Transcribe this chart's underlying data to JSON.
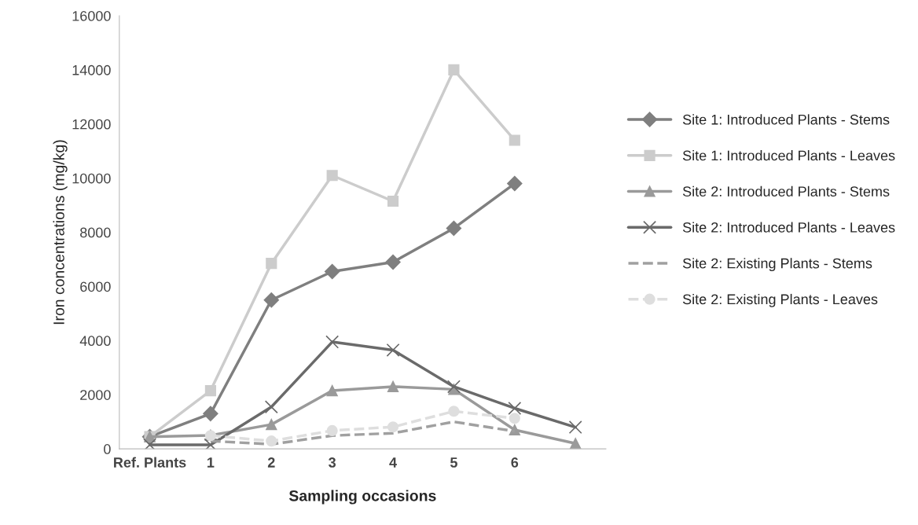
{
  "chart_data": {
    "type": "line",
    "xlabel": "Sampling occasions",
    "ylabel": "Iron concentrations (mg/kg)",
    "categories": [
      "Ref. Plants",
      "1",
      "2",
      "3",
      "4",
      "5",
      "6",
      null
    ],
    "ylim": [
      0,
      16000
    ],
    "yticks": [
      0,
      2000,
      4000,
      6000,
      8000,
      10000,
      12000,
      14000,
      16000
    ],
    "grid": false,
    "legend": "right",
    "series": [
      {
        "name": "Site 1: Introduced Plants - Stems",
        "color": "#7f7f7f",
        "marker": "diamond",
        "line_style": "solid",
        "values": [
          450,
          1300,
          5500,
          6550,
          6900,
          8150,
          9800,
          null
        ]
      },
      {
        "name": "Site 1: Introduced Plants - Leaves",
        "color": "#cccccc",
        "marker": "square",
        "line_style": "solid",
        "values": [
          450,
          2150,
          6850,
          10100,
          9150,
          14000,
          11400,
          null
        ]
      },
      {
        "name": "Site 2: Introduced Plants - Stems",
        "color": "#9a9a9a",
        "marker": "triangle",
        "line_style": "solid",
        "values": [
          450,
          500,
          900,
          2150,
          2300,
          2200,
          700,
          200
        ]
      },
      {
        "name": "Site 2: Introduced Plants - Leaves",
        "color": "#6a6a6a",
        "marker": "cross",
        "line_style": "solid",
        "values": [
          150,
          150,
          1550,
          3950,
          3650,
          2300,
          1500,
          800
        ]
      },
      {
        "name": "Site 2: Existing Plants - Stems",
        "color": "#a0a0a0",
        "marker": "none",
        "line_style": "dashed",
        "values": [
          null,
          290,
          170,
          490,
          580,
          1000,
          650,
          null
        ]
      },
      {
        "name": "Site 2: Existing Plants - Leaves",
        "color": "#dedede",
        "marker": "circle",
        "line_style": "dashed",
        "values": [
          null,
          490,
          290,
          675,
          810,
          1390,
          1130,
          null
        ]
      }
    ]
  }
}
